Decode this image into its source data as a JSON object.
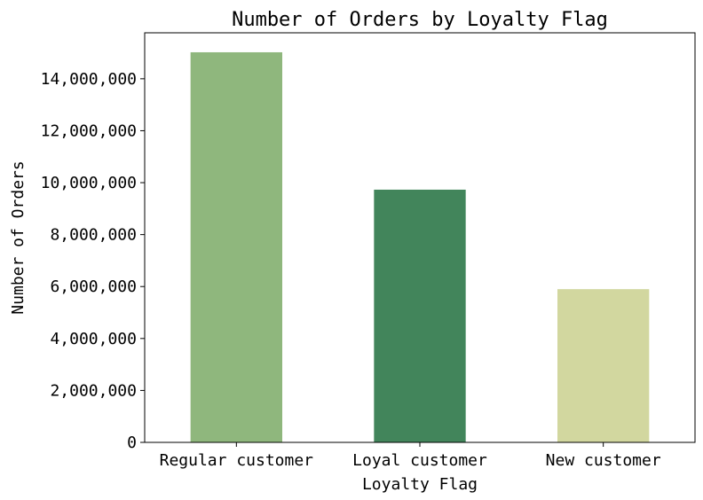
{
  "chart_data": {
    "type": "bar",
    "title": "Number of Orders by Loyalty Flag",
    "xlabel": "Loyalty Flag",
    "ylabel": "Number of Orders",
    "categories": [
      "Regular customer",
      "Loyal customer",
      "New customer"
    ],
    "values": [
      15020000,
      9730000,
      5900000
    ],
    "colors": [
      "#8fb77d",
      "#42855b",
      "#d2d79f"
    ],
    "ylim": [
      0,
      15770000
    ],
    "yticks": [
      0,
      2000000,
      4000000,
      6000000,
      8000000,
      10000000,
      12000000,
      14000000
    ],
    "ytick_labels": [
      "0",
      "2,000,000",
      "4,000,000",
      "6,000,000",
      "8,000,000",
      "10,000,000",
      "12,000,000",
      "14,000,000"
    ],
    "grid": false,
    "legend": "none"
  }
}
